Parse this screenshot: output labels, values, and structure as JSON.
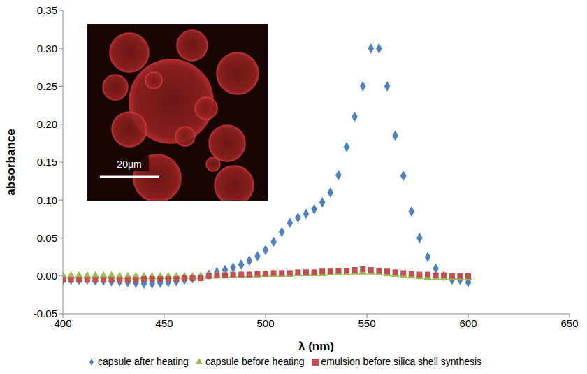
{
  "chart_data": {
    "type": "scatter",
    "title": "",
    "x_label": "λ (nm)",
    "y_label": "absorbance",
    "annotations": [
      "20μm"
    ],
    "x": [
      400,
      404,
      408,
      412,
      416,
      420,
      424,
      428,
      432,
      436,
      440,
      444,
      448,
      452,
      456,
      460,
      464,
      468,
      472,
      476,
      480,
      484,
      488,
      492,
      496,
      500,
      504,
      508,
      512,
      516,
      520,
      524,
      528,
      532,
      536,
      540,
      544,
      548,
      552,
      556,
      560,
      564,
      568,
      572,
      576,
      580,
      584,
      588,
      592,
      596,
      600
    ],
    "series": [
      {
        "name": "capsule after heating",
        "color": "#4f81bd",
        "marker": "diamond",
        "values": [
          -0.005,
          -0.005,
          -0.005,
          -0.005,
          -0.006,
          -0.006,
          -0.007,
          -0.007,
          -0.008,
          -0.009,
          -0.01,
          -0.01,
          -0.009,
          -0.008,
          -0.007,
          -0.005,
          -0.003,
          -0.001,
          0.002,
          0.005,
          0.008,
          0.011,
          0.015,
          0.02,
          0.026,
          0.034,
          0.045,
          0.058,
          0.07,
          0.077,
          0.082,
          0.088,
          0.097,
          0.11,
          0.133,
          0.17,
          0.21,
          0.25,
          0.3,
          0.3,
          0.25,
          0.185,
          0.132,
          0.085,
          0.05,
          0.025,
          0.01,
          0.0,
          -0.005,
          -0.005,
          -0.008
        ]
      },
      {
        "name": "capsule before heating",
        "color": "#9bbb59",
        "marker": "triangle",
        "values": [
          0.0,
          0.0,
          0.0,
          0.0,
          0.0,
          0.0,
          0.0,
          -0.001,
          -0.001,
          -0.001,
          -0.001,
          -0.001,
          -0.001,
          -0.001,
          -0.001,
          -0.001,
          -0.001,
          -0.001,
          0.0,
          0.0,
          0.0,
          0.001,
          0.001,
          0.001,
          0.001,
          0.002,
          0.002,
          0.002,
          0.002,
          0.003,
          0.003,
          0.003,
          0.003,
          0.004,
          0.004,
          0.004,
          0.005,
          0.005,
          0.005,
          0.004,
          0.003,
          0.002,
          0.001,
          0.0,
          -0.001,
          -0.002,
          -0.002,
          -0.002,
          -0.002,
          -0.002,
          -0.002
        ]
      },
      {
        "name": "emulsion before silica shell synthesis",
        "color": "#c0504d",
        "marker": "square",
        "values": [
          -0.005,
          -0.005,
          -0.005,
          -0.005,
          -0.005,
          -0.005,
          -0.005,
          -0.005,
          -0.005,
          -0.005,
          -0.004,
          -0.004,
          -0.004,
          -0.004,
          -0.004,
          -0.003,
          -0.003,
          -0.003,
          0.0,
          0.001,
          0.001,
          0.002,
          0.002,
          0.002,
          0.003,
          0.003,
          0.004,
          0.004,
          0.004,
          0.005,
          0.005,
          0.005,
          0.006,
          0.006,
          0.007,
          0.007,
          0.008,
          0.009,
          0.008,
          0.007,
          0.006,
          0.005,
          0.004,
          0.003,
          0.002,
          0.002,
          0.001,
          0.001,
          0.0,
          0.0,
          0.0
        ]
      }
    ],
    "xlim": [
      400,
      650
    ],
    "xticks": [
      400,
      450,
      500,
      550,
      600,
      650
    ],
    "ylim": [
      -0.05,
      0.35
    ],
    "yticks": [
      -0.05,
      {
        "value": 0,
        "label": "0.00"
      },
      0.05,
      {
        "value": 0.1,
        "label": "0.10"
      },
      0.15,
      {
        "value": 0.2,
        "label": "0.20"
      },
      0.25,
      {
        "value": 0.3,
        "label": "0.30"
      },
      0.35
    ],
    "grid": false,
    "legend": "bottom"
  }
}
